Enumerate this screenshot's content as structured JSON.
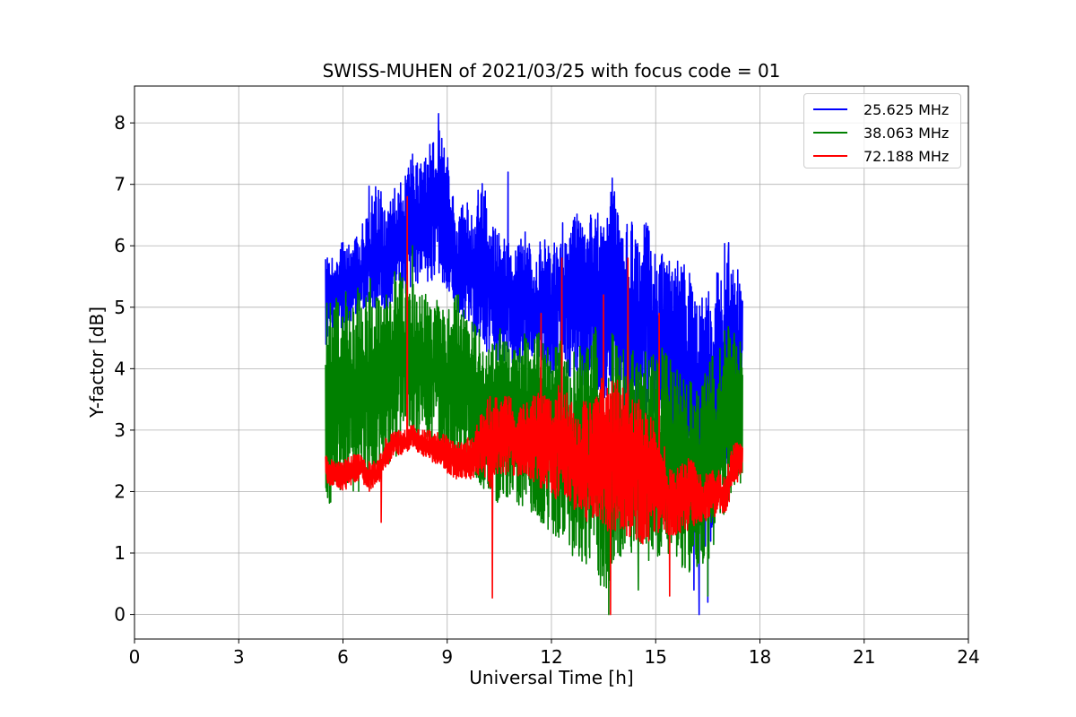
{
  "chart_data": {
    "type": "line",
    "title": "SWISS-MUHEN of 2021/03/25 with focus code = 01",
    "xlabel": "Universal Time [h]",
    "ylabel": "Y-factor [dB]",
    "xlim": [
      0,
      24
    ],
    "ylim": [
      -0.4,
      8.6
    ],
    "x_ticks": [
      0,
      3,
      6,
      9,
      12,
      15,
      18,
      21,
      24
    ],
    "y_ticks": [
      0,
      1,
      2,
      3,
      4,
      5,
      6,
      7,
      8
    ],
    "grid": true,
    "legend_position": "top-right",
    "series": [
      {
        "name": "25.625 MHz",
        "color": "#0000ff",
        "x": [
          5.5,
          5.75,
          6.0,
          6.25,
          6.5,
          6.75,
          7.0,
          7.25,
          7.5,
          7.75,
          8.0,
          8.25,
          8.5,
          8.75,
          9.0,
          9.25,
          9.5,
          9.75,
          10.0,
          10.25,
          10.5,
          10.75,
          11.0,
          11.25,
          11.5,
          11.75,
          12.0,
          12.25,
          12.5,
          12.75,
          13.0,
          13.25,
          13.5,
          13.75,
          14.0,
          14.25,
          14.5,
          14.75,
          15.0,
          15.25,
          15.5,
          15.75,
          16.0,
          16.25,
          16.5,
          16.75,
          17.0,
          17.25,
          17.5
        ],
        "low": [
          4.3,
          4.7,
          4.6,
          4.8,
          4.9,
          5.0,
          4.9,
          4.8,
          5.0,
          5.2,
          5.3,
          5.4,
          5.4,
          5.5,
          5.2,
          4.9,
          4.8,
          4.6,
          4.3,
          4.2,
          4.0,
          4.1,
          4.0,
          4.2,
          4.1,
          4.1,
          3.9,
          3.9,
          3.8,
          3.8,
          3.6,
          3.7,
          3.5,
          3.6,
          3.4,
          3.3,
          3.3,
          3.2,
          3.1,
          3.0,
          2.9,
          2.7,
          2.4,
          1.0,
          0.9,
          1.6,
          2.4,
          2.8,
          3.2
        ],
        "high": [
          5.9,
          5.8,
          6.1,
          6.0,
          6.3,
          6.6,
          7.3,
          6.5,
          7.0,
          7.1,
          7.6,
          7.4,
          7.7,
          8.15,
          7.6,
          6.5,
          6.8,
          6.6,
          7.2,
          6.4,
          6.2,
          6.1,
          6.0,
          6.3,
          5.8,
          6.2,
          6.0,
          6.5,
          6.3,
          6.6,
          6.2,
          6.8,
          6.4,
          7.1,
          6.3,
          6.6,
          6.0,
          6.7,
          5.8,
          5.9,
          5.7,
          5.9,
          5.6,
          5.2,
          5.3,
          5.6,
          6.1,
          5.7,
          5.6
        ]
      },
      {
        "name": "38.063 MHz",
        "color": "#008000",
        "x": [
          5.5,
          5.75,
          6.0,
          6.25,
          6.5,
          6.75,
          7.0,
          7.25,
          7.5,
          7.75,
          8.0,
          8.25,
          8.5,
          8.75,
          9.0,
          9.25,
          9.5,
          9.75,
          10.0,
          10.25,
          10.5,
          10.75,
          11.0,
          11.25,
          11.5,
          11.75,
          12.0,
          12.25,
          12.5,
          12.75,
          13.0,
          13.25,
          13.5,
          13.75,
          14.0,
          14.25,
          14.5,
          14.75,
          15.0,
          15.25,
          15.5,
          15.75,
          16.0,
          16.25,
          16.5,
          16.75,
          17.0,
          17.25,
          17.5
        ],
        "low": [
          1.7,
          1.8,
          2.0,
          1.9,
          2.0,
          2.0,
          2.2,
          2.4,
          2.5,
          2.7,
          2.8,
          2.8,
          2.8,
          2.7,
          2.6,
          2.5,
          2.4,
          2.2,
          2.0,
          1.9,
          1.8,
          1.9,
          1.8,
          1.7,
          1.5,
          1.4,
          1.2,
          1.1,
          1.0,
          0.9,
          0.8,
          0.9,
          0.0,
          0.5,
          0.8,
          0.9,
          1.0,
          0.9,
          0.8,
          0.9,
          1.0,
          0.7,
          0.6,
          0.6,
          0.8,
          1.2,
          1.5,
          2.0,
          2.1
        ],
        "high": [
          5.2,
          5.1,
          5.3,
          5.2,
          5.4,
          5.5,
          5.4,
          5.3,
          5.6,
          5.6,
          5.5,
          5.3,
          5.2,
          5.1,
          5.0,
          5.3,
          5.1,
          4.8,
          4.6,
          4.5,
          4.7,
          4.4,
          4.3,
          4.6,
          4.7,
          4.5,
          4.4,
          4.6,
          4.2,
          4.5,
          4.3,
          4.8,
          4.1,
          4.6,
          4.2,
          4.7,
          4.0,
          4.4,
          4.2,
          4.4,
          4.1,
          3.9,
          3.8,
          3.6,
          4.1,
          4.3,
          4.8,
          4.7,
          4.5
        ]
      },
      {
        "name": "72.188 MHz",
        "color": "#ff0000",
        "x": [
          5.5,
          5.75,
          6.0,
          6.25,
          6.5,
          6.75,
          7.0,
          7.25,
          7.5,
          7.75,
          8.0,
          8.25,
          8.5,
          8.75,
          9.0,
          9.25,
          9.5,
          9.75,
          10.0,
          10.25,
          10.5,
          10.75,
          11.0,
          11.25,
          11.5,
          11.75,
          12.0,
          12.25,
          12.5,
          12.75,
          13.0,
          13.25,
          13.5,
          13.75,
          14.0,
          14.25,
          14.5,
          14.75,
          15.0,
          15.25,
          15.5,
          15.75,
          16.0,
          16.25,
          16.5,
          16.75,
          17.0,
          17.25,
          17.5
        ],
        "low": [
          2.1,
          2.1,
          2.0,
          2.1,
          2.2,
          2.0,
          2.1,
          2.4,
          2.6,
          2.6,
          2.7,
          2.6,
          2.5,
          2.4,
          2.3,
          2.2,
          2.2,
          2.2,
          2.3,
          2.0,
          2.2,
          2.3,
          2.2,
          2.3,
          2.1,
          2.0,
          1.9,
          1.8,
          1.8,
          1.6,
          1.5,
          1.6,
          1.4,
          1.3,
          1.3,
          1.2,
          1.2,
          1.1,
          1.3,
          1.3,
          1.2,
          1.3,
          1.4,
          1.5,
          1.5,
          1.6,
          1.6,
          2.1,
          2.2
        ],
        "high": [
          2.6,
          2.5,
          2.5,
          2.6,
          2.6,
          2.5,
          2.5,
          2.9,
          3.0,
          3.0,
          3.1,
          3.0,
          3.0,
          3.0,
          2.9,
          2.8,
          2.8,
          3.0,
          3.3,
          3.6,
          3.5,
          3.6,
          3.4,
          3.5,
          3.6,
          3.7,
          3.5,
          3.8,
          3.6,
          3.4,
          3.5,
          3.6,
          4.0,
          3.8,
          4.0,
          3.6,
          3.5,
          3.6,
          3.0,
          2.8,
          2.4,
          2.5,
          2.6,
          2.3,
          2.3,
          2.4,
          2.3,
          2.8,
          2.9
        ]
      }
    ],
    "annotations": {
      "25.625 MHz": {
        "spikes": [
          [
            8.75,
            8.15
          ],
          [
            6.0,
            6.05
          ],
          [
            6.75,
            6.97
          ],
          [
            10.75,
            7.2
          ],
          [
            13.75,
            7.1
          ],
          [
            17.1,
            6.05
          ]
        ],
        "dips": [
          [
            16.25,
            0.0
          ],
          [
            16.1,
            0.4
          ],
          [
            16.5,
            0.2
          ]
        ]
      },
      "38.063 MHz": {
        "spikes": [
          [
            7.85,
            6.3
          ],
          [
            8.0,
            6.0
          ]
        ],
        "dips": [
          [
            13.65,
            0.0
          ],
          [
            14.5,
            0.4
          ],
          [
            16.5,
            0.3
          ]
        ]
      },
      "72.188 MHz": {
        "spikes": [
          [
            7.85,
            6.8
          ],
          [
            14.2,
            5.8
          ],
          [
            12.3,
            5.8
          ],
          [
            13.5,
            5.2
          ],
          [
            11.7,
            4.9
          ],
          [
            15.1,
            4.9
          ]
        ],
        "dips": [
          [
            10.3,
            0.27
          ],
          [
            13.7,
            0.0
          ],
          [
            15.4,
            0.3
          ],
          [
            7.1,
            1.5
          ]
        ]
      }
    }
  }
}
